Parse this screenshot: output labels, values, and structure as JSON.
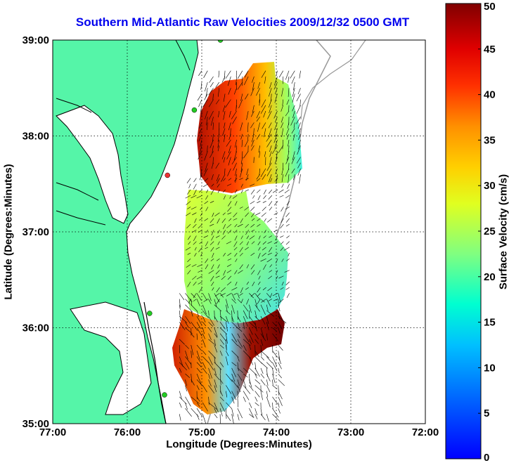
{
  "title": "Southern Mid-Atlantic Raw Velocities 2009/12/32 0500 GMT",
  "axes": {
    "xlabel": "Longitude (Degrees:Minutes)",
    "ylabel": "Latitude (Degrees:Minutes)",
    "x_ticks": [
      "77:00",
      "76:00",
      "75:00",
      "74:00",
      "73:00",
      "72:00"
    ],
    "y_ticks": [
      "39:00",
      "38:00",
      "37:00",
      "36:00",
      "35:00"
    ],
    "xlim": [
      -77,
      -72
    ],
    "ylim": [
      35,
      39
    ],
    "grid": "dotted"
  },
  "colorbar": {
    "label": "Surface Velocity (cm/s)",
    "ticks": [
      "50",
      "45",
      "40",
      "35",
      "30",
      "25",
      "20",
      "15",
      "10",
      "5",
      "0"
    ],
    "range": [
      0,
      50
    ],
    "colormap": "jet"
  },
  "colors": {
    "land": "#55f5a8",
    "coastline": "#000000",
    "isobath": "#999999",
    "title": "#0000ee",
    "station_marker": "#22cc22",
    "station_marker_alt": "#ee3333"
  },
  "stations": [
    {
      "lon": -74.75,
      "lat": 39.0,
      "color": "green"
    },
    {
      "lon": -75.1,
      "lat": 38.27,
      "color": "green"
    },
    {
      "lon": -75.46,
      "lat": 37.59,
      "color": "red"
    },
    {
      "lon": -75.7,
      "lat": 36.15,
      "color": "green"
    },
    {
      "lon": -75.5,
      "lat": 35.3,
      "color": "green"
    }
  ],
  "velocity_regions": [
    {
      "name": "north",
      "lat_range": [
        37.6,
        38.7
      ],
      "lon_range": [
        -75.0,
        -73.6
      ],
      "speed_cms": "25-50"
    },
    {
      "name": "middle",
      "lat_range": [
        36.3,
        37.6
      ],
      "lon_range": [
        -75.15,
        -73.8
      ],
      "speed_cms": "10-25"
    },
    {
      "name": "south",
      "lat_range": [
        35.1,
        36.4
      ],
      "lon_range": [
        -75.3,
        -73.95
      ],
      "speed_cms": "5-50"
    }
  ]
}
